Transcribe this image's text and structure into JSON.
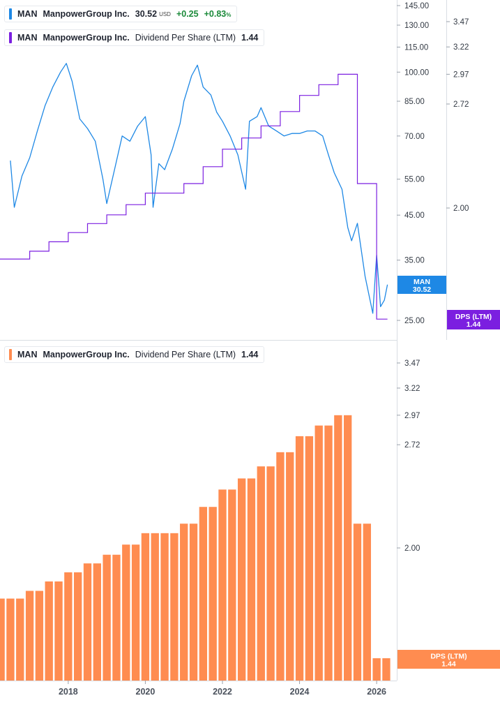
{
  "legends": {
    "price": {
      "ticker": "MAN",
      "company": "ManpowerGroup Inc.",
      "price": "30.52",
      "currency": "USD",
      "change": "+0.25",
      "change_pct": "+0.83",
      "change_pct_unit": "%",
      "color": "#1e88e5"
    },
    "dps_top": {
      "ticker": "MAN",
      "company": "ManpowerGroup Inc.",
      "metric": "Dividend Per Share (LTM)",
      "value": "1.44",
      "color": "#7b1fe0"
    },
    "dps_bottom": {
      "ticker": "MAN",
      "company": "ManpowerGroup Inc.",
      "metric": "Dividend Per Share (LTM)",
      "value": "1.44",
      "color": "#ff8c50"
    }
  },
  "badges": {
    "price": {
      "label": "MAN",
      "value": "30.52",
      "color": "#1e88e5"
    },
    "dps_top": {
      "label": "DPS (LTM)",
      "value": "1.44",
      "color": "#7b1fe0"
    },
    "dps_bottom": {
      "label": "DPS (LTM)",
      "value": "1.44",
      "color": "#ff8c50"
    }
  },
  "chart_data": [
    {
      "type": "line",
      "panel": "top",
      "y_scale": "log",
      "grid": false,
      "legend_placement": "top-left",
      "price_axis_ticks": [
        "145.00",
        "130.00",
        "115.00",
        "100.00",
        "85.00",
        "70.00",
        "55.00",
        "45.00",
        "35.00",
        "25.00"
      ],
      "dps_axis_ticks": [
        "3.47",
        "3.22",
        "2.97",
        "2.72",
        "2.00"
      ],
      "series": [
        {
          "name": "MAN",
          "color": "#1e88e5",
          "x": [
            2016.5,
            2016.6,
            2016.8,
            2017.0,
            2017.2,
            2017.4,
            2017.6,
            2017.8,
            2017.95,
            2018.1,
            2018.3,
            2018.5,
            2018.7,
            2018.9,
            2019.0,
            2019.2,
            2019.4,
            2019.6,
            2019.8,
            2020.0,
            2020.15,
            2020.2,
            2020.35,
            2020.5,
            2020.7,
            2020.9,
            2021.0,
            2021.2,
            2021.35,
            2021.5,
            2021.7,
            2021.85,
            2022.0,
            2022.2,
            2022.4,
            2022.6,
            2022.7,
            2022.9,
            2023.0,
            2023.2,
            2023.4,
            2023.6,
            2023.8,
            2024.0,
            2024.2,
            2024.4,
            2024.6,
            2024.75,
            2024.9,
            2025.1,
            2025.25,
            2025.35,
            2025.5,
            2025.7,
            2025.9,
            2026.0,
            2026.1,
            2026.2,
            2026.28
          ],
          "values": [
            61,
            47,
            56,
            62,
            72,
            83,
            92,
            100,
            105,
            95,
            77,
            73,
            68,
            55,
            48,
            58,
            70,
            68,
            74,
            78,
            63,
            47,
            60,
            58,
            65,
            75,
            85,
            98,
            104,
            92,
            88,
            80,
            76,
            70,
            63,
            52,
            76,
            78,
            82,
            74,
            72,
            70,
            71,
            71,
            72,
            72,
            70,
            63,
            57,
            52,
            42,
            39,
            43,
            32,
            26,
            36,
            27,
            28,
            30.52
          ]
        },
        {
          "name": "DPS (LTM)",
          "color": "#7b1fe0",
          "x": [
            2016.5,
            2026.28
          ],
          "values": [
            1.72,
            1.44
          ]
        }
      ]
    },
    {
      "type": "bar",
      "panel": "bottom",
      "series": [
        {
          "name": "DPS (LTM)",
          "color": "#ff8c50",
          "x": [
            2016.25,
            2016.5,
            2016.75,
            2017.0,
            2017.25,
            2017.5,
            2017.75,
            2018.0,
            2018.25,
            2018.5,
            2018.75,
            2019.0,
            2019.25,
            2019.5,
            2019.75,
            2020.0,
            2020.25,
            2020.5,
            2020.75,
            2021.0,
            2021.25,
            2021.5,
            2021.75,
            2022.0,
            2022.25,
            2022.5,
            2022.75,
            2023.0,
            2023.25,
            2023.5,
            2023.75,
            2024.0,
            2024.25,
            2024.5,
            2024.75,
            2025.0,
            2025.25,
            2025.5,
            2025.75,
            2026.0,
            2026.25
          ],
          "values": [
            1.72,
            1.72,
            1.72,
            1.76,
            1.76,
            1.81,
            1.81,
            1.86,
            1.86,
            1.91,
            1.91,
            1.96,
            1.96,
            2.02,
            2.02,
            2.09,
            2.09,
            2.09,
            2.09,
            2.15,
            2.15,
            2.26,
            2.26,
            2.38,
            2.38,
            2.46,
            2.46,
            2.55,
            2.55,
            2.66,
            2.66,
            2.79,
            2.79,
            2.88,
            2.88,
            2.97,
            2.97,
            2.15,
            2.15,
            1.44,
            1.44
          ]
        }
      ],
      "dps_axis_ticks": [
        "3.47",
        "3.22",
        "2.97",
        "2.72",
        "2.00"
      ],
      "x_tick_labels": [
        "2018",
        "2020",
        "2022",
        "2024",
        "2026"
      ],
      "x_ticks": [
        2018,
        2020,
        2022,
        2024,
        2026
      ]
    }
  ]
}
